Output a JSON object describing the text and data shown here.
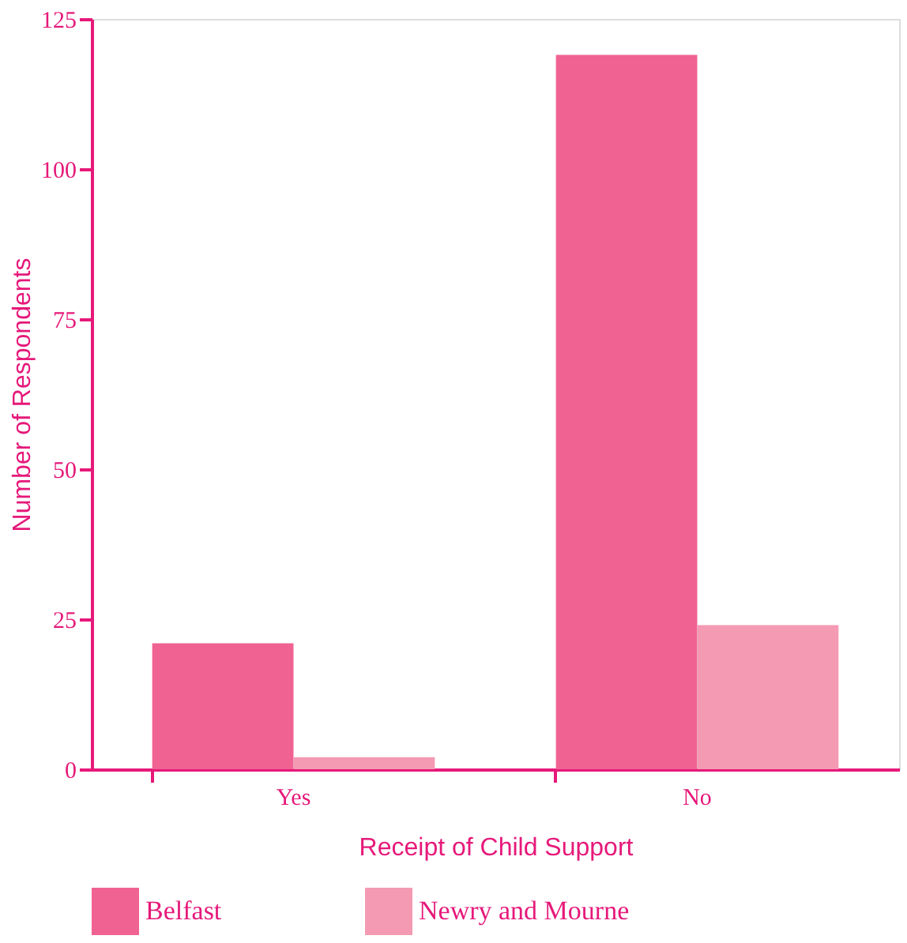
{
  "chart_data": {
    "type": "bar",
    "xlabel": "Receipt of Child Support",
    "ylabel": "Number of Respondents",
    "categories": [
      "Yes",
      "No"
    ],
    "series": [
      {
        "name": "Belfast",
        "color": "#f06292",
        "values": [
          21,
          119
        ]
      },
      {
        "name": "Newry and Mourne",
        "color": "#f49ab3",
        "values": [
          2,
          24
        ]
      }
    ],
    "ylim": [
      0,
      125
    ],
    "yticks": [
      0,
      25,
      50,
      75,
      100,
      125
    ],
    "grid": false,
    "legend": "bottom"
  }
}
